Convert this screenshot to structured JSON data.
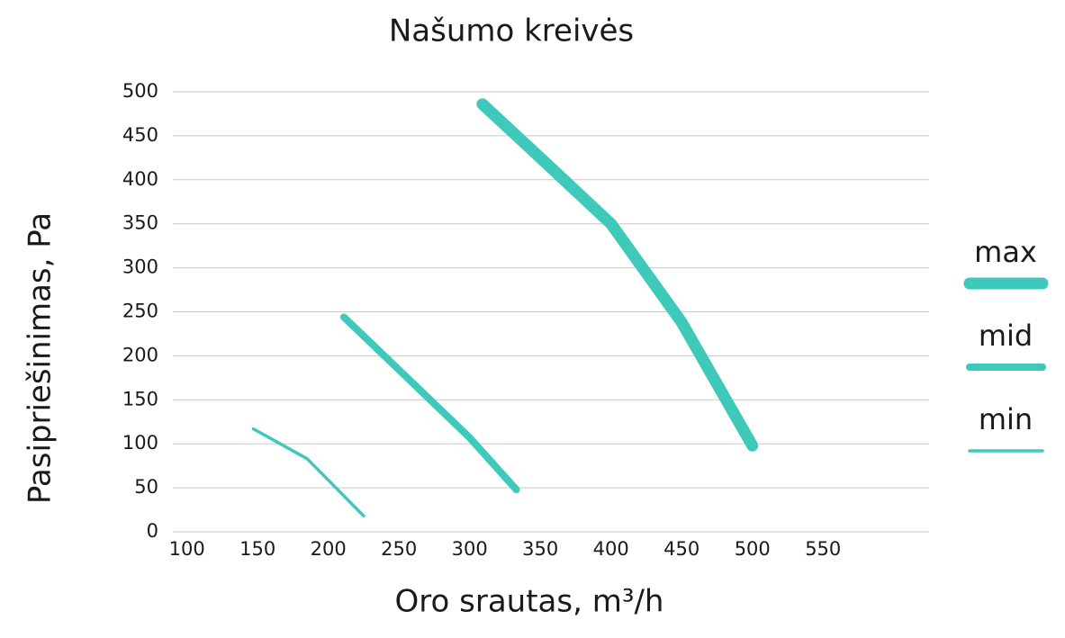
{
  "chart_data": {
    "type": "line",
    "title": "Našumo kreivės",
    "x_label": "Oro srautas, m³/h",
    "y_label": "Pasipriešinimas, Pa",
    "xlim": [
      90,
      625
    ],
    "xticks": [
      100,
      150,
      200,
      250,
      300,
      350,
      400,
      450,
      500,
      550
    ],
    "ylim": [
      0,
      500
    ],
    "yticks": [
      0,
      50,
      100,
      150,
      200,
      250,
      300,
      350,
      400,
      450,
      500
    ],
    "grid": true,
    "legend": "right",
    "series": [
      {
        "name": "max",
        "color": "#3ec9bb",
        "line_width": 13,
        "x": [
          309,
          350,
          400,
          450,
          500
        ],
        "values": [
          486,
          425,
          350,
          238,
          98
        ]
      },
      {
        "name": "mid",
        "color": "#3ec9bb",
        "line_width": 8,
        "x": [
          211,
          250,
          300,
          333
        ],
        "values": [
          244,
          184,
          107,
          48
        ]
      },
      {
        "name": "min",
        "color": "#3ec9bb",
        "line_width": 3.5,
        "x": [
          147,
          185,
          225
        ],
        "values": [
          117,
          83,
          18
        ]
      }
    ]
  }
}
